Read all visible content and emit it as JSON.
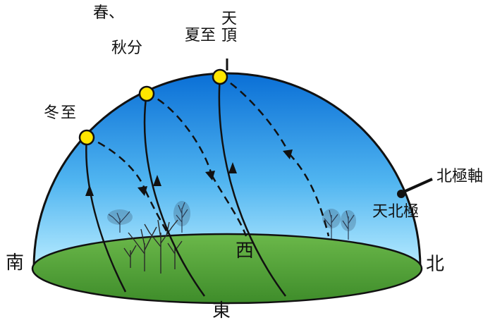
{
  "labels": {
    "south": "南",
    "north": "北",
    "east": "東",
    "west": "西",
    "zenith": "天頂",
    "summer_solstice": "夏至",
    "equinox_line1": "春、",
    "equinox_line2": "秋分",
    "winter_solstice": "冬至",
    "north_pole_axis": "北極軸",
    "celestial_north_pole": "天北極"
  },
  "colors": {
    "sky_top": "#0a6fd6",
    "sky_bottom": "#a9e6ff",
    "ground": "#5aa83c",
    "sun": "#ffe600",
    "line": "#111111"
  }
}
